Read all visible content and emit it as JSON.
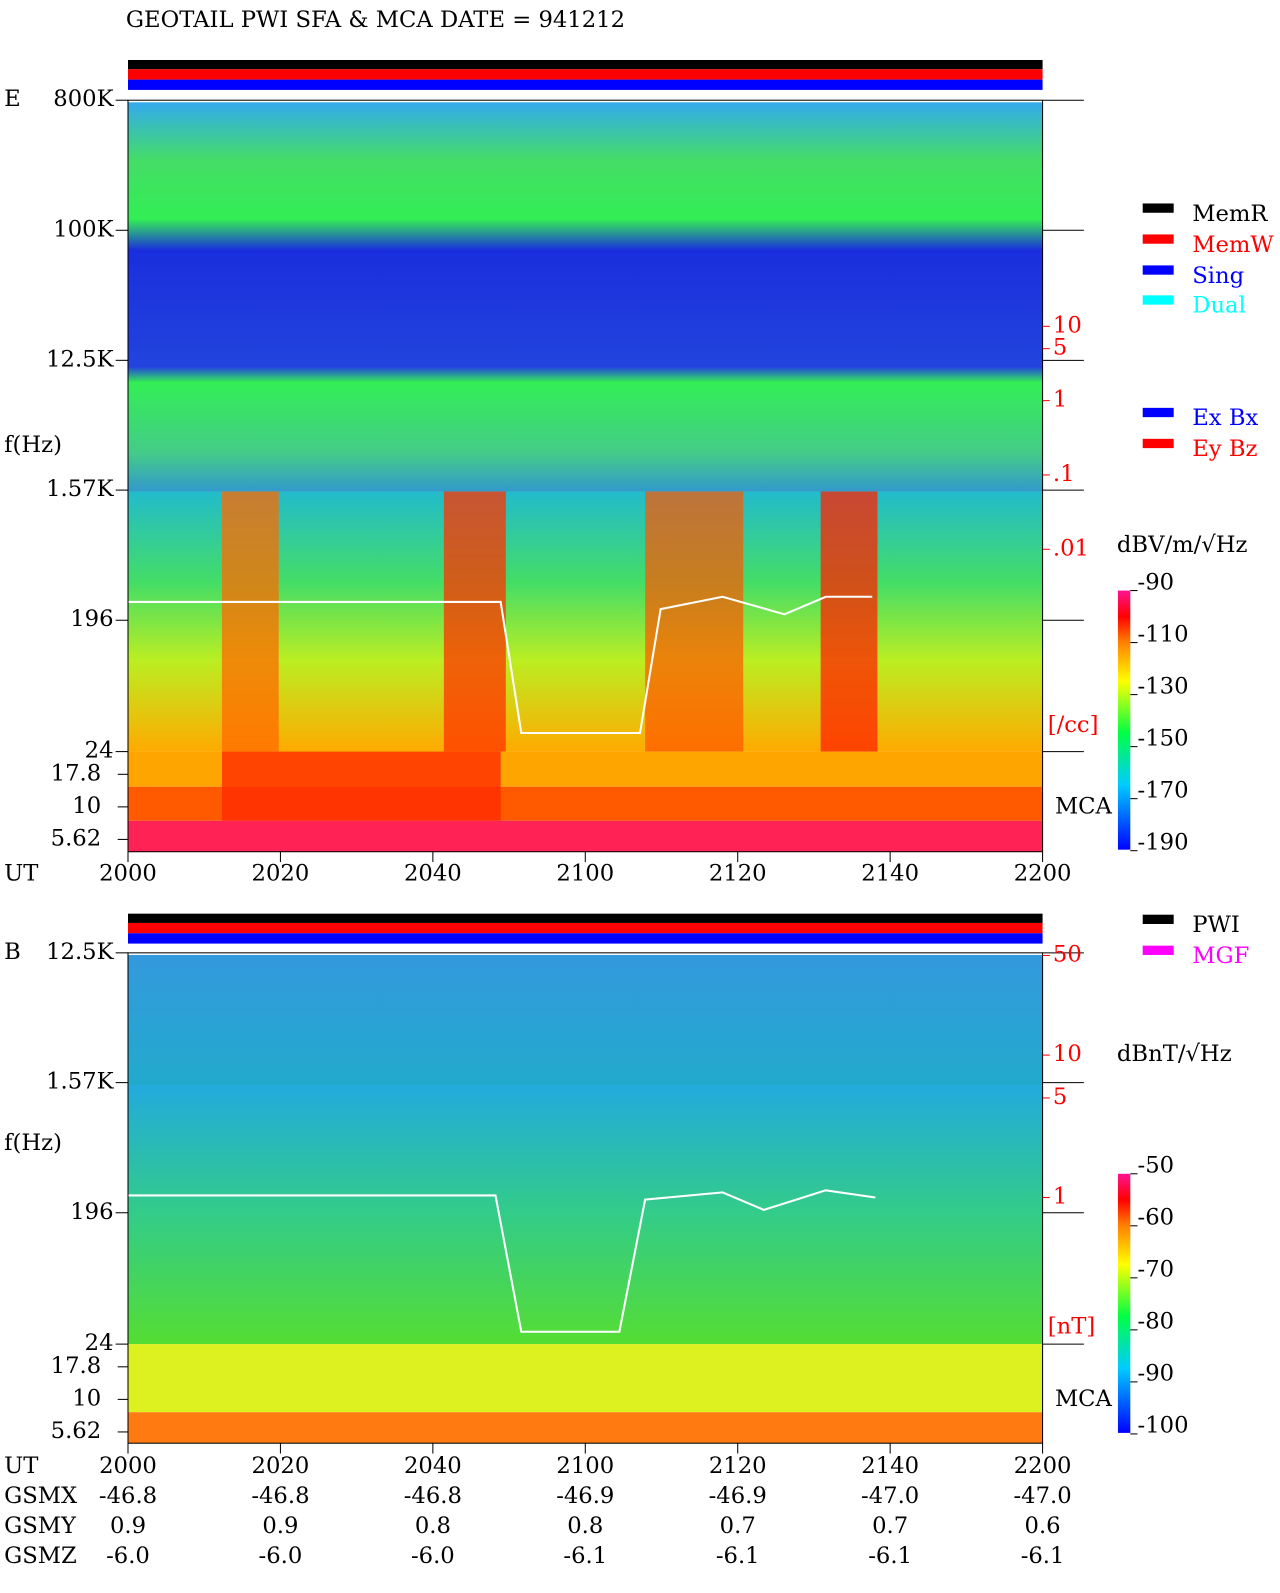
{
  "title": "GEOTAIL  PWI SFA & MCA   DATE = 941212",
  "chart_data": [
    {
      "type": "spectrogram",
      "panel_label": "E",
      "y_label": "f(Hz)",
      "y_log": true,
      "ylim": [
        24,
        800000
      ],
      "yticks": [
        {
          "value": 800000,
          "label": "800K"
        },
        {
          "value": 100000,
          "label": "100K"
        },
        {
          "value": 12500,
          "label": "12.5K"
        },
        {
          "value": 1570,
          "label": "1.57K"
        },
        196,
        24
      ],
      "mca_ticks": [
        17.8,
        10,
        5.62
      ],
      "mca_label": "MCA",
      "x_label": "UT",
      "x_labels": [
        "2000",
        "2020",
        "2040",
        "2100",
        "2120",
        "2140",
        "2200"
      ],
      "colorbar": {
        "label": "dBV/m/√Hz",
        "lim": [
          -190,
          -90
        ],
        "ticks": [
          -90,
          -110,
          -130,
          -150,
          -170,
          -190
        ]
      },
      "right_axis": {
        "label": "[/cc]",
        "color": "#ff0000",
        "ticks": [
          10,
          5,
          1,
          {
            "value": 0.1,
            "label": ".1"
          },
          {
            "value": 0.01,
            "label": ".01"
          }
        ]
      },
      "legend": [
        {
          "name": "MemR",
          "color": "#000000"
        },
        {
          "name": "MemW",
          "color": "#ff0000"
        },
        {
          "name": "Sing",
          "color": "#0000ff"
        },
        {
          "name": "Dual",
          "color": "#00ffff"
        },
        {
          "name": "Ex Bx",
          "color": "#0000ff"
        },
        {
          "name": "Ey Bz",
          "color": "#ff0000"
        }
      ]
    },
    {
      "type": "spectrogram",
      "panel_label": "B",
      "y_label": "f(Hz)",
      "y_log": true,
      "ylim": [
        24,
        12500
      ],
      "yticks": [
        {
          "value": 12500,
          "label": "12.5K"
        },
        {
          "value": 1570,
          "label": "1.57K"
        },
        196,
        24
      ],
      "mca_ticks": [
        17.8,
        10,
        5.62
      ],
      "mca_label": "MCA",
      "x_label": "UT",
      "x_labels": [
        "2000",
        "2020",
        "2040",
        "2100",
        "2120",
        "2140",
        "2200"
      ],
      "colorbar": {
        "label": "dBnT/√Hz",
        "lim": [
          -100,
          -50
        ],
        "ticks": [
          -50,
          -60,
          -70,
          -80,
          -90,
          -100
        ]
      },
      "right_axis": {
        "label": "[nT]",
        "color": "#ff0000",
        "ticks": [
          50,
          10,
          5,
          1
        ]
      },
      "legend": [
        {
          "name": "PWI",
          "color": "#000000"
        },
        {
          "name": "MGF",
          "color": "#ff00ff"
        }
      ]
    }
  ],
  "orbit": {
    "rows": [
      {
        "label": "GSMX",
        "values": [
          "-46.8",
          "-46.8",
          "-46.8",
          "-46.9",
          "-46.9",
          "-47.0",
          "-47.0"
        ]
      },
      {
        "label": "GSMY",
        "values": [
          "0.9",
          "0.9",
          "0.8",
          "0.8",
          "0.7",
          "0.7",
          "0.6"
        ]
      },
      {
        "label": "GSMZ",
        "values": [
          "-6.0",
          "-6.0",
          "-6.0",
          "-6.1",
          "-6.1",
          "-6.1",
          "-6.1"
        ]
      }
    ]
  }
}
